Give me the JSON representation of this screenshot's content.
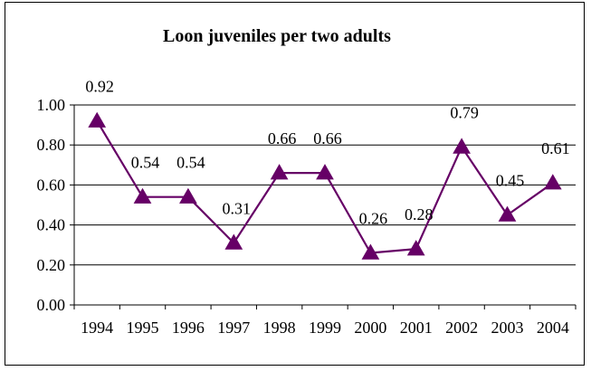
{
  "chart_data": {
    "type": "line",
    "title": "Loon juveniles per two adults",
    "xlabel": "",
    "ylabel": "",
    "categories": [
      "1994",
      "1995",
      "1996",
      "1997",
      "1998",
      "1999",
      "2000",
      "2001",
      "2002",
      "2003",
      "2004"
    ],
    "series": [
      {
        "values": [
          0.92,
          0.54,
          0.54,
          0.31,
          0.66,
          0.66,
          0.26,
          0.28,
          0.79,
          0.45,
          0.61
        ],
        "labels": [
          "0.92",
          "0.54",
          "0.54",
          "0.31",
          "0.66",
          "0.66",
          "0.26",
          "0.28",
          "0.79",
          "0.45",
          "0.61"
        ],
        "color": "#660066",
        "marker": "triangle"
      }
    ],
    "ylim": [
      0,
      1
    ],
    "yticks": [
      "0.00",
      "0.20",
      "0.40",
      "0.60",
      "0.80",
      "1.00"
    ],
    "grid": true,
    "legend": "none"
  },
  "colors": {
    "series": "#660066",
    "grid": "#000000",
    "axis": "#000000"
  }
}
